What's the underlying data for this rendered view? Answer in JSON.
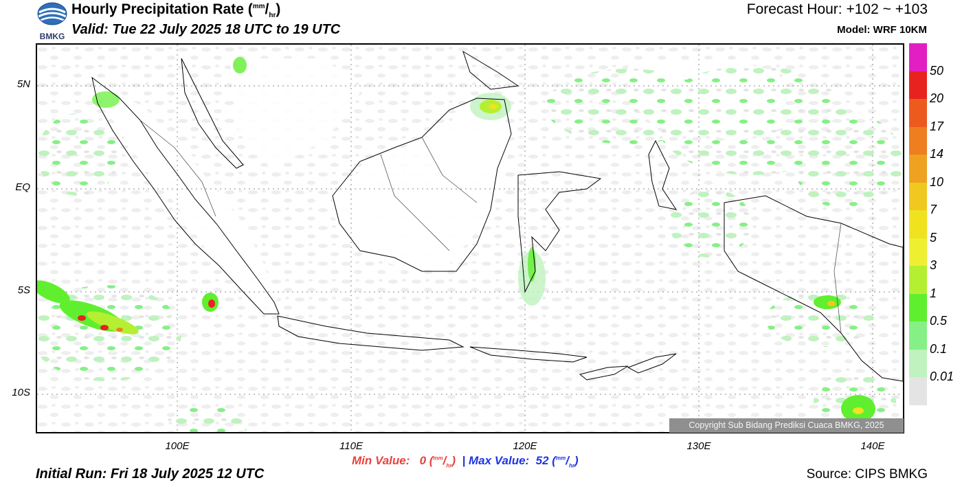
{
  "header": {
    "title_main": "Hourly Precipitation Rate (",
    "title_unit_num": "mm",
    "title_unit_sep": "/",
    "title_unit_den": "hr",
    "title_close": ")",
    "valid": "Valid: Tue 22 July 2025 18 UTC to 19 UTC",
    "forecast_hour": "Forecast Hour: +102 ~ +103",
    "model": "Model: WRF 10KM"
  },
  "logo": {
    "text": "BMKG",
    "icon": "bmkg-logo-icon"
  },
  "axes": {
    "lat_labels": [
      "5N",
      "EQ",
      "5S",
      "10S"
    ],
    "lon_labels": [
      "100E",
      "110E",
      "120E",
      "130E",
      "140E"
    ]
  },
  "footer": {
    "min_label": "Min Value:",
    "min_value": "0",
    "separator": "|",
    "max_label": "Max Value:",
    "max_value": "52",
    "unit_num": "mm",
    "unit_den": "hr",
    "initial_run": "Initial Run: Fri 18 July 2025 12 UTC",
    "source": "Source: CIPS BMKG",
    "copyright": "Copyright Sub Bidang Prediksi Cuaca BMKG, 2025"
  },
  "legend": {
    "labels": [
      "50",
      "20",
      "17",
      "14",
      "10",
      "7",
      "5",
      "3",
      "1",
      "0.5",
      "0.1",
      "0.01"
    ],
    "colors": [
      "#e21fc3",
      "#e8221f",
      "#ec5a1e",
      "#ee7e1f",
      "#eea21f",
      "#f0c81f",
      "#f0e21f",
      "#efef32",
      "#b4ef32",
      "#5fef2f",
      "#86f086",
      "#bff2bf",
      "#e4e4e4"
    ]
  }
}
